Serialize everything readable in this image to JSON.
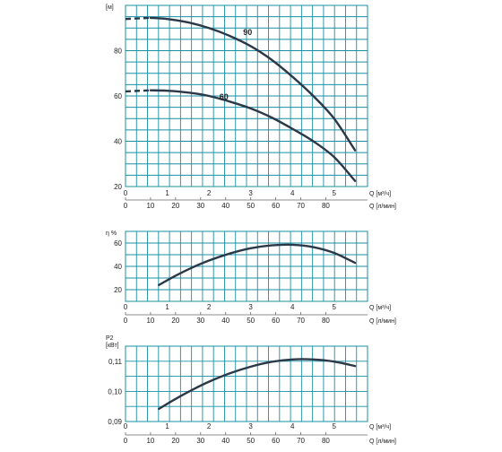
{
  "chart_data": [
    {
      "type": "line",
      "ylabel": "[м]",
      "ylim": [
        20,
        100
      ],
      "y_ticks": [
        "20",
        "40",
        "60",
        "80"
      ],
      "xlabel": "Q [м³/ч]",
      "xlabel2": "Q [л/мин]",
      "xlim": [
        0,
        5.8
      ],
      "x_ticks": [
        "0",
        "1",
        "2",
        "3",
        "4",
        "5"
      ],
      "x2_ticks": [
        "0",
        "10",
        "20",
        "30",
        "40",
        "50",
        "60",
        "70",
        "80"
      ],
      "series": [
        {
          "name": "90",
          "dashed_until": 0.6,
          "x": [
            0,
            0.6,
            1.0,
            1.5,
            2.0,
            2.5,
            3.0,
            3.5,
            4.0,
            4.5,
            5.0,
            5.5
          ],
          "y": [
            94,
            94.5,
            94,
            92.5,
            90,
            86.5,
            82,
            76,
            68.5,
            60,
            50,
            36
          ]
        },
        {
          "name": "60",
          "dashed_until": 0.6,
          "x": [
            0,
            0.6,
            1.0,
            1.5,
            2.0,
            2.5,
            3.0,
            3.5,
            4.0,
            4.5,
            5.0,
            5.5
          ],
          "y": [
            62,
            62.5,
            62.3,
            61.5,
            60,
            57.5,
            54.5,
            50.5,
            45.5,
            40,
            33,
            22.5
          ]
        }
      ]
    },
    {
      "type": "line",
      "ylabel": "η %",
      "ylim": [
        10,
        70
      ],
      "y_ticks": [
        "20",
        "40",
        "60"
      ],
      "xlabel": "Q [м³/ч]",
      "xlabel2": "Q [л/мин]",
      "xlim": [
        0,
        5.8
      ],
      "x_ticks": [
        "0",
        "1",
        "2",
        "3",
        "4",
        "5"
      ],
      "x2_ticks": [
        "0",
        "10",
        "20",
        "30",
        "40",
        "50",
        "60",
        "70",
        "80"
      ],
      "series": [
        {
          "x": [
            0.8,
            1.2,
            1.6,
            2.0,
            2.5,
            3.0,
            3.5,
            4.0,
            4.5,
            5.0,
            5.5
          ],
          "y": [
            24,
            32,
            39,
            45,
            51,
            55.5,
            58,
            58.5,
            56.5,
            51.5,
            43
          ]
        }
      ]
    },
    {
      "type": "line",
      "ylabel": "P2",
      "ylabel2": "[кВт]",
      "ylim": [
        0.09,
        0.115
      ],
      "y_ticks": [
        "0,09",
        "0,10",
        "0,11"
      ],
      "xlabel": "Q [м³/ч]",
      "xlabel2": "Q [л/мин]",
      "xlim": [
        0,
        5.8
      ],
      "x_ticks": [
        "0",
        "1",
        "2",
        "3",
        "4",
        "5"
      ],
      "x2_ticks": [
        "0",
        "10",
        "20",
        "30",
        "40",
        "50",
        "60",
        "70",
        "80"
      ],
      "series": [
        {
          "x": [
            0.8,
            1.2,
            1.6,
            2.0,
            2.5,
            3.0,
            3.5,
            4.0,
            4.5,
            5.0,
            5.5
          ],
          "y": [
            0.0942,
            0.0975,
            0.1005,
            0.1032,
            0.106,
            0.1082,
            0.1098,
            0.1106,
            0.1106,
            0.1099,
            0.1084
          ]
        }
      ]
    }
  ]
}
